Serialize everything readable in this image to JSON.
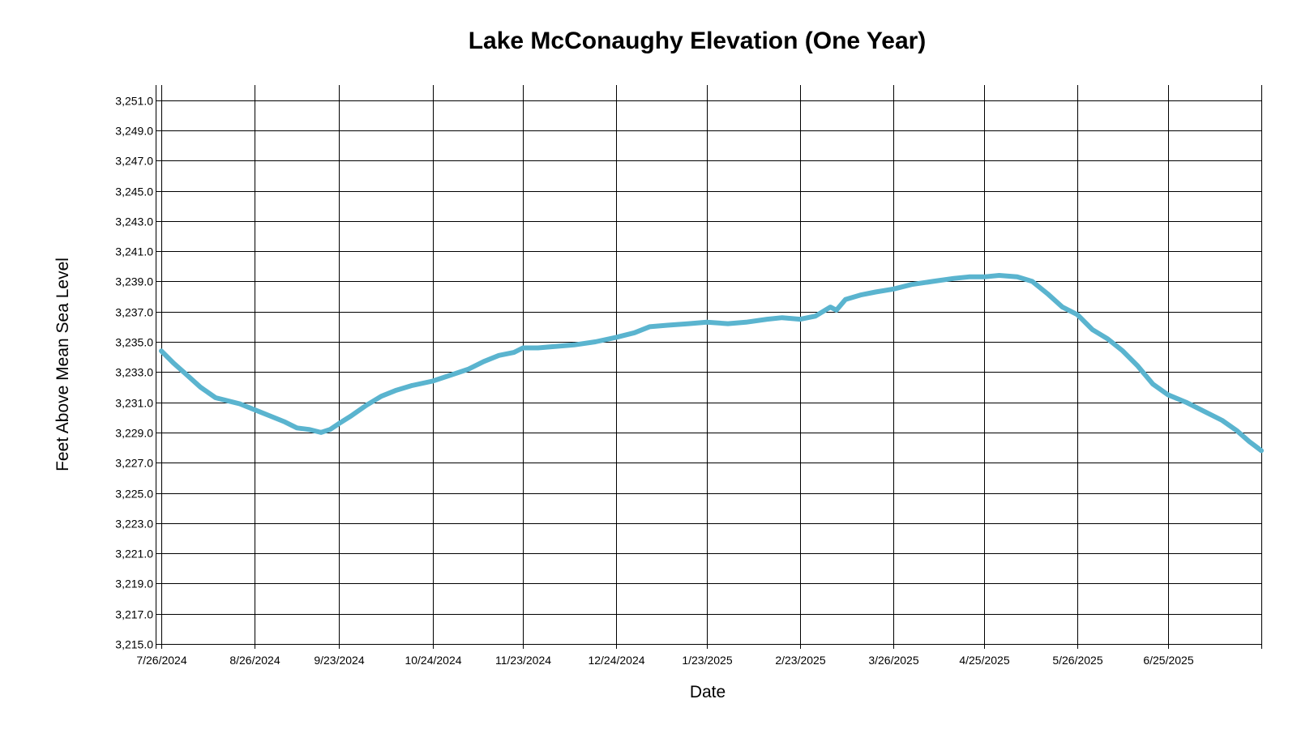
{
  "chart_data": {
    "type": "line",
    "title": "Lake McConaughy Elevation (One Year)",
    "xlabel": "Date",
    "ylabel": "Feet Above Mean Sea Level",
    "xlim": [
      "2024-07-26",
      "2025-07-26"
    ],
    "ylim": [
      3215.0,
      3252.0
    ],
    "y_ticks": [
      3215.0,
      3217.0,
      3219.0,
      3221.0,
      3223.0,
      3225.0,
      3227.0,
      3229.0,
      3231.0,
      3233.0,
      3235.0,
      3237.0,
      3239.0,
      3241.0,
      3243.0,
      3245.0,
      3247.0,
      3249.0,
      3251.0
    ],
    "y_tick_labels": [
      "3,215.0",
      "3,217.0",
      "3,219.0",
      "3,221.0",
      "3,223.0",
      "3,225.0",
      "3,227.0",
      "3,229.0",
      "3,231.0",
      "3,233.0",
      "3,235.0",
      "3,237.0",
      "3,239.0",
      "3,241.0",
      "3,243.0",
      "3,245.0",
      "3,247.0",
      "3,249.0",
      "3,251.0"
    ],
    "x_ticks": [
      "2024-07-26",
      "2024-08-26",
      "2024-09-23",
      "2024-10-24",
      "2024-11-23",
      "2024-12-24",
      "2025-01-23",
      "2025-02-23",
      "2025-03-26",
      "2025-04-25",
      "2025-05-26",
      "2025-06-25"
    ],
    "x_tick_labels": [
      "7/26/2024",
      "8/26/2024",
      "9/23/2024",
      "10/24/2024",
      "11/23/2024",
      "12/24/2024",
      "1/23/2025",
      "2/23/2025",
      "3/26/2025",
      "4/25/2025",
      "5/26/2025",
      "6/25/2025"
    ],
    "grid": true,
    "series": [
      {
        "color": "#5ab4cf",
        "x": [
          "2024-07-26",
          "2024-07-30",
          "2024-08-03",
          "2024-08-08",
          "2024-08-13",
          "2024-08-17",
          "2024-08-21",
          "2024-08-26",
          "2024-08-31",
          "2024-09-05",
          "2024-09-09",
          "2024-09-13",
          "2024-09-17",
          "2024-09-20",
          "2024-09-23",
          "2024-09-27",
          "2024-10-02",
          "2024-10-07",
          "2024-10-12",
          "2024-10-17",
          "2024-10-24",
          "2024-10-30",
          "2024-11-05",
          "2024-11-10",
          "2024-11-15",
          "2024-11-20",
          "2024-11-23",
          "2024-11-28",
          "2024-12-04",
          "2024-12-10",
          "2024-12-17",
          "2024-12-24",
          "2024-12-30",
          "2025-01-04",
          "2025-01-10",
          "2025-01-17",
          "2025-01-23",
          "2025-01-30",
          "2025-02-05",
          "2025-02-12",
          "2025-02-17",
          "2025-02-23",
          "2025-02-28",
          "2025-03-05",
          "2025-03-07",
          "2025-03-10",
          "2025-03-15",
          "2025-03-20",
          "2025-03-26",
          "2025-04-01",
          "2025-04-08",
          "2025-04-15",
          "2025-04-20",
          "2025-04-25",
          "2025-04-30",
          "2025-05-06",
          "2025-05-11",
          "2025-05-16",
          "2025-05-21",
          "2025-05-26",
          "2025-05-31",
          "2025-06-05",
          "2025-06-10",
          "2025-06-15",
          "2025-06-20",
          "2025-06-25",
          "2025-07-01",
          "2025-07-07",
          "2025-07-13",
          "2025-07-18",
          "2025-07-22",
          "2025-07-26"
        ],
        "y": [
          3234.4,
          3233.6,
          3232.9,
          3232.0,
          3231.3,
          3231.1,
          3230.9,
          3230.5,
          3230.1,
          3229.7,
          3229.3,
          3229.2,
          3229.0,
          3229.2,
          3229.6,
          3230.1,
          3230.8,
          3231.4,
          3231.8,
          3232.1,
          3232.4,
          3232.8,
          3233.2,
          3233.7,
          3234.1,
          3234.3,
          3234.6,
          3234.6,
          3234.7,
          3234.8,
          3235.0,
          3235.3,
          3235.6,
          3236.0,
          3236.1,
          3236.2,
          3236.3,
          3236.2,
          3236.3,
          3236.5,
          3236.6,
          3236.5,
          3236.7,
          3237.3,
          3237.1,
          3237.8,
          3238.1,
          3238.3,
          3238.5,
          3238.8,
          3239.0,
          3239.2,
          3239.3,
          3239.3,
          3239.4,
          3239.3,
          3239.0,
          3238.2,
          3237.3,
          3236.8,
          3235.8,
          3235.2,
          3234.4,
          3233.4,
          3232.2,
          3231.5,
          3231.0,
          3230.4,
          3229.8,
          3229.1,
          3228.4,
          3227.8
        ]
      }
    ]
  }
}
